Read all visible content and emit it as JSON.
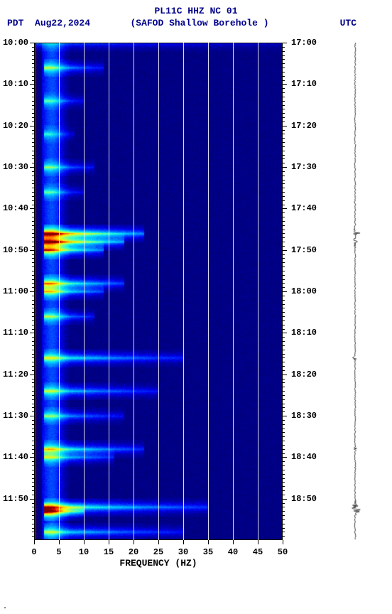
{
  "header": {
    "line1": "PL11C HHZ NC 01",
    "tz_left": "PDT",
    "date": "Aug22,2024",
    "station": "(SAFOD Shallow Borehole )",
    "tz_right": "UTC"
  },
  "spectrogram": {
    "type": "spectrogram",
    "xlabel": "FREQUENCY (HZ)",
    "xlim": [
      0,
      50
    ],
    "xticks": [
      0,
      5,
      10,
      15,
      20,
      25,
      30,
      35,
      40,
      45,
      50
    ],
    "ylim_minutes": [
      0,
      120
    ],
    "left_ticks": [
      "10:00",
      "10:10",
      "10:20",
      "10:30",
      "10:40",
      "10:50",
      "11:00",
      "11:10",
      "11:20",
      "11:30",
      "11:40",
      "11:50"
    ],
    "right_ticks": [
      "17:00",
      "17:10",
      "17:20",
      "17:30",
      "17:40",
      "17:50",
      "18:00",
      "18:10",
      "18:20",
      "18:30",
      "18:40",
      "18:50"
    ],
    "minor_step_min": 1,
    "background_color": "#00008f",
    "gridline_color": "#ffffff",
    "colormap": [
      "#000060",
      "#00008f",
      "#0000ef",
      "#0040ff",
      "#0090ff",
      "#00d0ff",
      "#30ffcf",
      "#80ff80",
      "#cfff30",
      "#ffef00",
      "#ff9f00",
      "#ff4f00",
      "#cf0000",
      "#800000"
    ],
    "low_freq_edge_color": "#800000",
    "events": [
      {
        "t": 0,
        "f0": 0,
        "f1": 50,
        "intensity": 0.25
      },
      {
        "t": 6,
        "f0": 2,
        "f1": 14,
        "intensity": 0.45
      },
      {
        "t": 14,
        "f0": 2,
        "f1": 10,
        "intensity": 0.35
      },
      {
        "t": 22,
        "f0": 2,
        "f1": 8,
        "intensity": 0.3
      },
      {
        "t": 30,
        "f0": 2,
        "f1": 12,
        "intensity": 0.4
      },
      {
        "t": 36,
        "f0": 2,
        "f1": 10,
        "intensity": 0.35
      },
      {
        "t": 46,
        "f0": 2,
        "f1": 22,
        "intensity": 0.95
      },
      {
        "t": 48,
        "f0": 2,
        "f1": 18,
        "intensity": 0.9
      },
      {
        "t": 50,
        "f0": 2,
        "f1": 14,
        "intensity": 0.75
      },
      {
        "t": 58,
        "f0": 2,
        "f1": 18,
        "intensity": 0.65
      },
      {
        "t": 60,
        "f0": 2,
        "f1": 14,
        "intensity": 0.55
      },
      {
        "t": 66,
        "f0": 2,
        "f1": 12,
        "intensity": 0.45
      },
      {
        "t": 76,
        "f0": 2,
        "f1": 30,
        "intensity": 0.5
      },
      {
        "t": 84,
        "f0": 2,
        "f1": 25,
        "intensity": 0.45
      },
      {
        "t": 90,
        "f0": 2,
        "f1": 18,
        "intensity": 0.4
      },
      {
        "t": 98,
        "f0": 2,
        "f1": 22,
        "intensity": 0.55
      },
      {
        "t": 100,
        "f0": 2,
        "f1": 16,
        "intensity": 0.45
      },
      {
        "t": 112,
        "f0": 2,
        "f1": 35,
        "intensity": 0.6
      },
      {
        "t": 113,
        "f0": 2,
        "f1": 10,
        "intensity": 0.85
      },
      {
        "t": 118,
        "f0": 2,
        "f1": 30,
        "intensity": 0.45
      }
    ]
  },
  "trace": {
    "color": "#404040",
    "baseline_amp": 0.05,
    "bursts": [
      {
        "t": 46,
        "amp": 0.45
      },
      {
        "t": 48,
        "amp": 0.4
      },
      {
        "t": 76,
        "amp": 0.18
      },
      {
        "t": 98,
        "amp": 0.15
      },
      {
        "t": 112,
        "amp": 0.7
      },
      {
        "t": 113,
        "amp": 0.55
      }
    ]
  },
  "footer": "."
}
